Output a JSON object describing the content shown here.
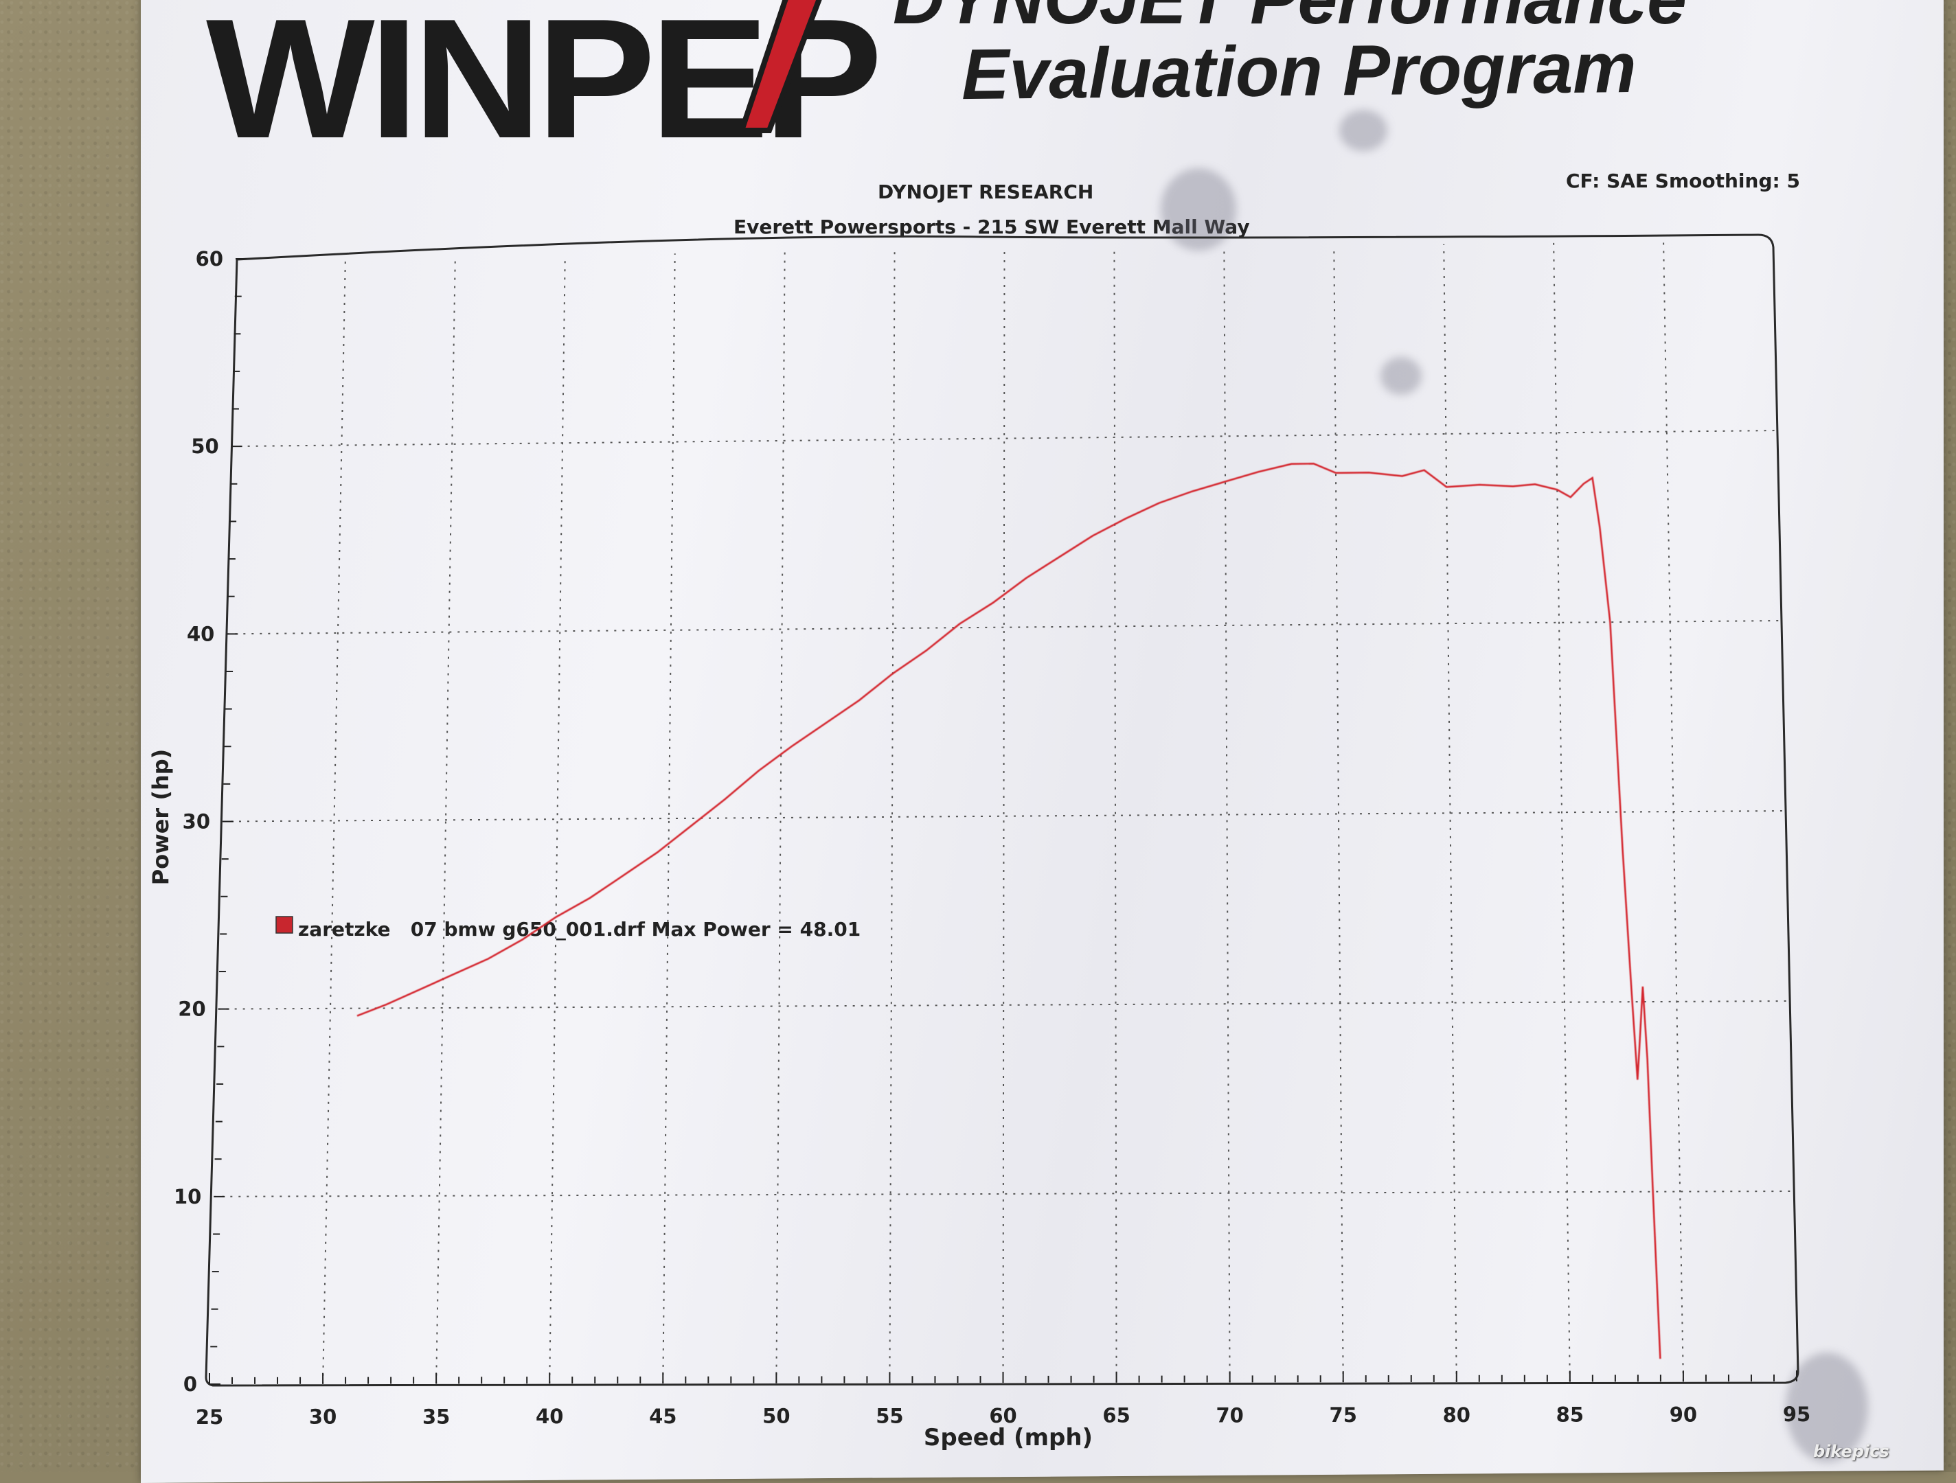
{
  "header": {
    "logo": "WINPEP",
    "title_line1": "DYNOJET Performance",
    "title_line2": "Evaluation Program",
    "company": "DYNOJET RESEARCH",
    "location": "Everett Powersports - 215 SW Everett Mall Way",
    "cf_info": "CF: SAE  Smoothing: 5"
  },
  "watermark": "bikepics",
  "colors": {
    "curve": "#d4262e",
    "ink": "#222222"
  },
  "chart_data": {
    "type": "line",
    "xlabel": "Speed (mph)",
    "ylabel": "Power (hp)",
    "xlim": [
      25,
      95
    ],
    "ylim": [
      0,
      60
    ],
    "x_ticks": [
      25,
      30,
      35,
      40,
      45,
      50,
      55,
      60,
      65,
      70,
      75,
      80,
      85,
      90,
      95
    ],
    "y_ticks": [
      0,
      10,
      20,
      30,
      40,
      50,
      60
    ],
    "grid": true,
    "legend_position": "center-left",
    "series": [
      {
        "name": "zaretzke   07 bmw g650_001.drf Max Power = 48.01",
        "color": "#d4262e",
        "x": [
          31.2,
          32.5,
          34,
          35.5,
          37,
          38.5,
          40,
          41.5,
          43,
          44.5,
          46,
          47.5,
          49,
          50.5,
          52,
          53.5,
          55,
          56.5,
          58,
          59.5,
          61,
          62.5,
          64,
          65.5,
          67,
          68.5,
          70,
          71.5,
          73,
          74,
          75,
          76.5,
          78,
          79,
          80,
          81.5,
          83,
          84,
          85,
          85.6,
          86.2,
          86.6,
          86.9,
          87.3,
          87.7,
          88.0,
          88.2,
          88.3,
          88.5,
          88.65,
          88.8,
          89.0
        ],
        "y": [
          19.6,
          20.2,
          21.0,
          21.8,
          22.6,
          23.6,
          24.8,
          25.8,
          27.0,
          28.2,
          29.6,
          31.0,
          32.5,
          33.8,
          35.0,
          36.2,
          37.6,
          38.8,
          40.2,
          41.3,
          42.6,
          43.7,
          44.8,
          45.7,
          46.5,
          47.1,
          47.6,
          48.1,
          48.5,
          48.5,
          48.0,
          48.0,
          47.8,
          48.1,
          47.2,
          47.3,
          47.2,
          47.3,
          47.0,
          46.6,
          47.3,
          47.6,
          45.0,
          40.0,
          28.0,
          20.5,
          15.9,
          17.5,
          20.8,
          17.0,
          10.0,
          1.2
        ]
      }
    ]
  }
}
